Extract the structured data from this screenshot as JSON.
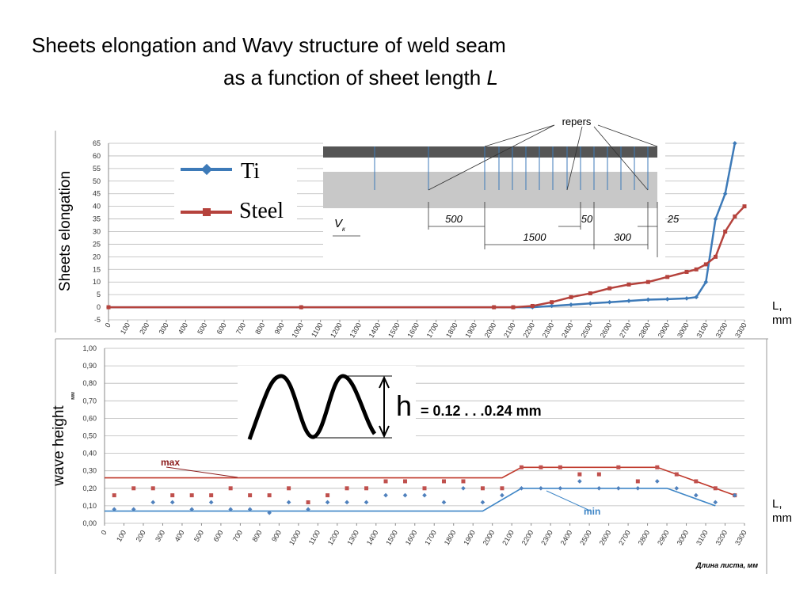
{
  "slide_title": {
    "line1": "Sheets elongation and Wavy structure of weld seam",
    "line2": "as a function of sheet length",
    "variable": "L"
  },
  "inset": {
    "callout": "repers",
    "dimensions": [
      500,
      50,
      1500,
      300,
      25
    ],
    "velocity": "V",
    "velocity_subscript": "к"
  },
  "wave": {
    "symbol": "h",
    "range": "= 0.12 . . .0.24 mm"
  },
  "chart_data": [
    {
      "type": "line",
      "y_label": "Sheets elongation",
      "axis_note": "L, mm",
      "xlim": [
        0,
        3300
      ],
      "ylim": [
        -5,
        65
      ],
      "xticks": [
        0,
        100,
        200,
        300,
        400,
        500,
        600,
        700,
        800,
        900,
        1000,
        1100,
        1200,
        1300,
        1400,
        1500,
        1600,
        1700,
        1800,
        1900,
        2000,
        2100,
        2200,
        2300,
        2400,
        2500,
        2600,
        2700,
        2800,
        2900,
        3000,
        3100,
        3200,
        3300
      ],
      "yticks": [
        -5,
        0,
        5,
        10,
        15,
        20,
        25,
        30,
        35,
        40,
        45,
        50,
        55,
        60,
        65
      ],
      "grid": true,
      "series": [
        {
          "name": "Ti",
          "color": "#3d7ab8",
          "marker": "diamond",
          "mode": "line",
          "x": [
            0,
            1000,
            2000,
            2100,
            2200,
            2300,
            2400,
            2500,
            2600,
            2700,
            2800,
            2900,
            3000,
            3050,
            3100,
            3150,
            3200,
            3250
          ],
          "values": [
            0,
            0,
            0,
            0,
            0,
            0.5,
            1,
            1.5,
            2,
            2.5,
            3,
            3.2,
            3.5,
            4,
            10,
            35,
            45,
            65
          ]
        },
        {
          "name": "Steel",
          "color": "#b5423c",
          "marker": "square",
          "mode": "line",
          "x": [
            0,
            1000,
            2000,
            2100,
            2200,
            2300,
            2400,
            2500,
            2600,
            2700,
            2800,
            2900,
            3000,
            3050,
            3100,
            3150,
            3200,
            3250,
            3300
          ],
          "values": [
            0,
            0,
            0,
            0,
            0.5,
            2,
            4,
            5.5,
            7.5,
            9,
            10,
            12,
            14,
            15,
            17,
            20,
            30,
            36,
            40
          ]
        }
      ]
    },
    {
      "type": "line",
      "y_label": "wave height",
      "y_unit": "мм",
      "x_label": "Длина листа, мм",
      "axis_note": "L, mm",
      "annotations": [
        "max",
        "min"
      ],
      "xlim": [
        0,
        3300
      ],
      "ylim": [
        0,
        1
      ],
      "xticks": [
        0,
        100,
        200,
        300,
        400,
        500,
        600,
        700,
        800,
        900,
        1000,
        1100,
        1200,
        1300,
        1400,
        1500,
        1600,
        1700,
        1800,
        1900,
        2000,
        2100,
        2200,
        2300,
        2400,
        2500,
        2600,
        2700,
        2800,
        2900,
        3000,
        3100,
        3200,
        3300
      ],
      "yticks": [
        {
          "value": 0,
          "label": "0,00"
        },
        {
          "value": 0.1,
          "label": "0,10"
        },
        {
          "value": 0.2,
          "label": "0,20"
        },
        {
          "value": 0.3,
          "label": "0,30"
        },
        {
          "value": 0.4,
          "label": "0,40"
        },
        {
          "value": 0.5,
          "label": "0,50"
        },
        {
          "value": 0.6,
          "label": "0,60"
        },
        {
          "value": 0.7,
          "label": "0,70"
        },
        {
          "value": 0.8,
          "label": "0,80"
        },
        {
          "value": 0.9,
          "label": "0,90"
        },
        {
          "value": 1,
          "label": "1,00"
        }
      ],
      "grid": true,
      "series": [
        {
          "color": "#c0392b",
          "mode": "line",
          "x": [
            0,
            2050,
            2150,
            2850,
            3000,
            3250
          ],
          "values": [
            0.26,
            0.26,
            0.32,
            0.32,
            0.26,
            0.16
          ]
        },
        {
          "color": "#3d85c6",
          "mode": "line",
          "x": [
            0,
            1950,
            2150,
            2900,
            3150
          ],
          "values": [
            0.07,
            0.07,
            0.2,
            0.2,
            0.1
          ]
        },
        {
          "color": "#c0504d",
          "mode": "markers",
          "marker": "square",
          "x": [
            50,
            150,
            250,
            350,
            450,
            550,
            650,
            750,
            850,
            950,
            1050,
            1150,
            1250,
            1350,
            1450,
            1550,
            1650,
            1750,
            1850,
            1950,
            2050,
            2150,
            2250,
            2350,
            2450,
            2550,
            2650,
            2750,
            2850,
            2950,
            3050,
            3150,
            3250
          ],
          "values": [
            0.16,
            0.2,
            0.2,
            0.16,
            0.16,
            0.16,
            0.2,
            0.16,
            0.16,
            0.2,
            0.12,
            0.16,
            0.2,
            0.2,
            0.24,
            0.24,
            0.2,
            0.24,
            0.24,
            0.2,
            0.2,
            0.32,
            0.32,
            0.32,
            0.28,
            0.28,
            0.32,
            0.24,
            0.32,
            0.28,
            0.24,
            0.2,
            0.16
          ]
        },
        {
          "color": "#4f81bd",
          "mode": "markers",
          "marker": "diamond",
          "x": [
            50,
            150,
            250,
            350,
            450,
            550,
            650,
            750,
            850,
            950,
            1050,
            1150,
            1250,
            1350,
            1450,
            1550,
            1650,
            1750,
            1850,
            1950,
            2050,
            2150,
            2250,
            2350,
            2450,
            2550,
            2650,
            2750,
            2850,
            2950,
            3050,
            3150,
            3250
          ],
          "values": [
            0.08,
            0.08,
            0.12,
            0.12,
            0.08,
            0.12,
            0.08,
            0.08,
            0.06,
            0.12,
            0.08,
            0.12,
            0.12,
            0.12,
            0.16,
            0.16,
            0.16,
            0.12,
            0.2,
            0.12,
            0.16,
            0.2,
            0.2,
            0.2,
            0.24,
            0.2,
            0.2,
            0.2,
            0.24,
            0.2,
            0.16,
            0.12,
            0.16
          ]
        }
      ]
    }
  ]
}
